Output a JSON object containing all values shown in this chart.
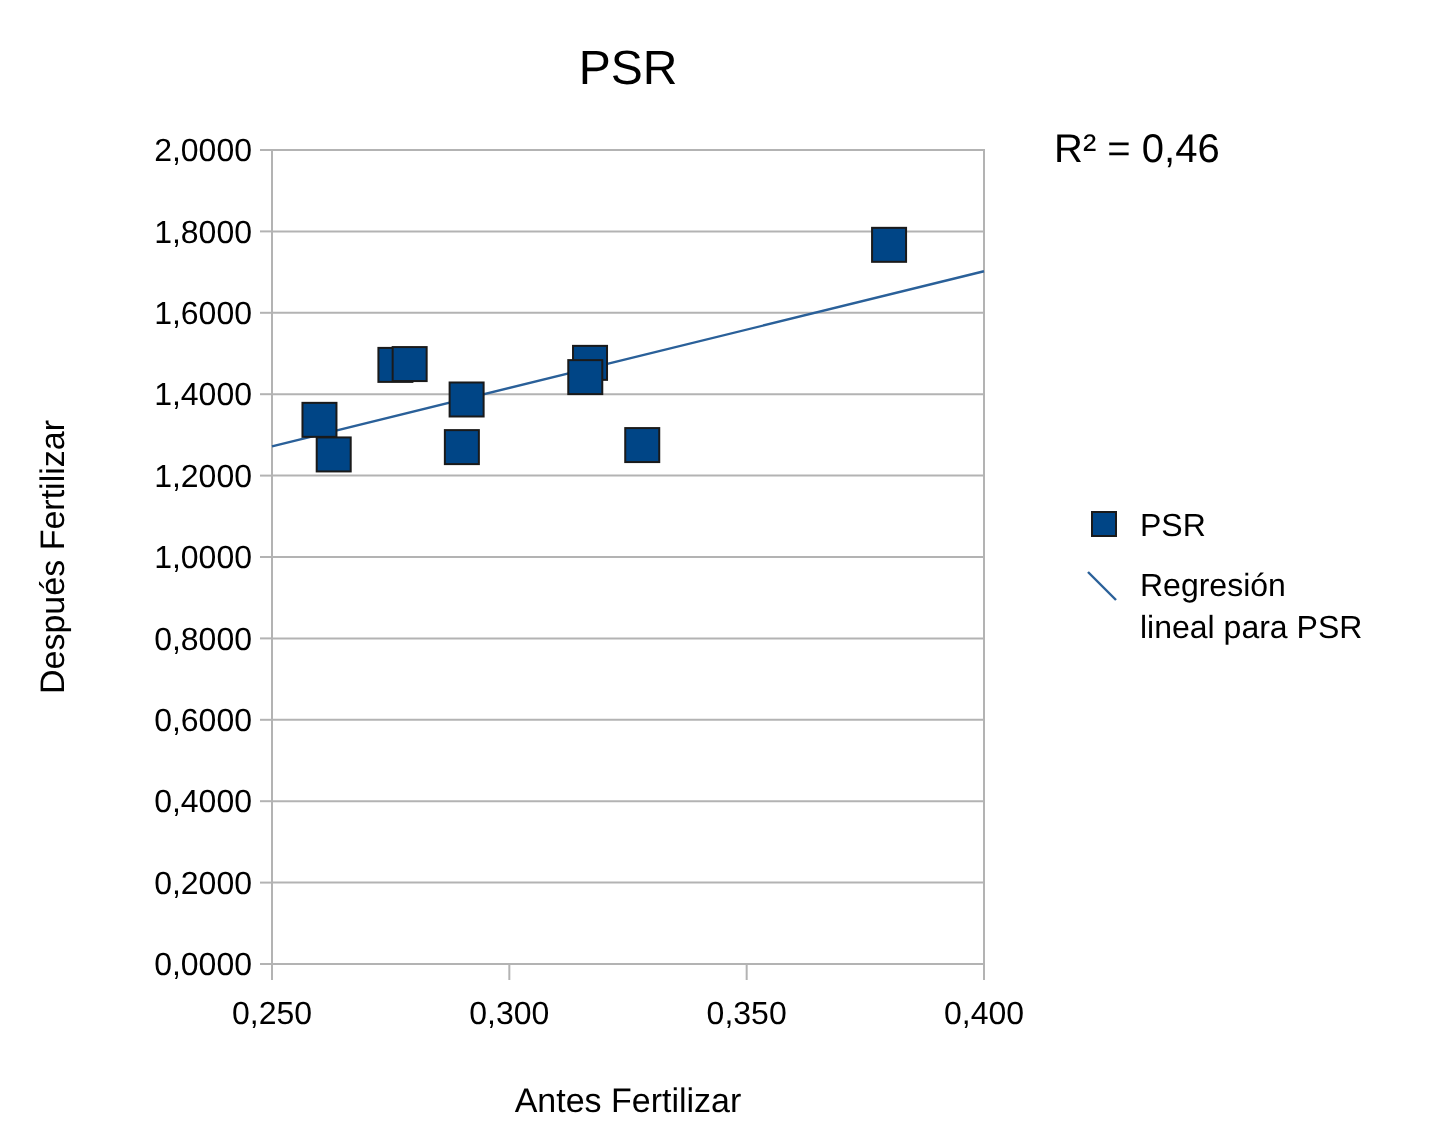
{
  "chart_data": {
    "type": "scatter",
    "title": "PSR",
    "xlabel": "Antes Fertilizar",
    "ylabel": "Después Fertilizar",
    "annotations": [
      "R² = 0,46"
    ],
    "xlim": [
      0.25,
      0.4
    ],
    "xticks": [
      {
        "value": 0.25,
        "label": "0,250"
      },
      {
        "value": 0.3,
        "label": "0,300"
      },
      {
        "value": 0.35,
        "label": "0,350"
      },
      {
        "value": 0.4,
        "label": "0,400"
      }
    ],
    "ylim": [
      0,
      2
    ],
    "yticks": [
      {
        "value": 0,
        "label": "0,0000"
      },
      {
        "value": 0.2,
        "label": "0,2000"
      },
      {
        "value": 0.4,
        "label": "0,4000"
      },
      {
        "value": 0.6,
        "label": "0,6000"
      },
      {
        "value": 0.8,
        "label": "0,8000"
      },
      {
        "value": 1,
        "label": "1,0000"
      },
      {
        "value": 1.2,
        "label": "1,2000"
      },
      {
        "value": 1.4,
        "label": "1,4000"
      },
      {
        "value": 1.6,
        "label": "1,6000"
      },
      {
        "value": 1.8,
        "label": "1,8000"
      },
      {
        "value": 2,
        "label": "2,0000"
      }
    ],
    "grid": "y",
    "legend": "right",
    "series": [
      {
        "name": "PSR",
        "marker": "square",
        "color": "#004586",
        "x": [
          0.26,
          0.263,
          0.276,
          0.279,
          0.291,
          0.29,
          0.317,
          0.316,
          0.328,
          0.38
        ],
        "values": [
          1.337,
          1.252,
          1.472,
          1.474,
          1.387,
          1.27,
          1.477,
          1.442,
          1.275,
          1.767
        ]
      },
      {
        "name": "Regresión lineal para PSR",
        "type": "line",
        "marker": "none",
        "color": "#2a6099",
        "x": [
          0.25,
          0.4
        ],
        "values": [
          1.272,
          1.702
        ]
      }
    ]
  }
}
